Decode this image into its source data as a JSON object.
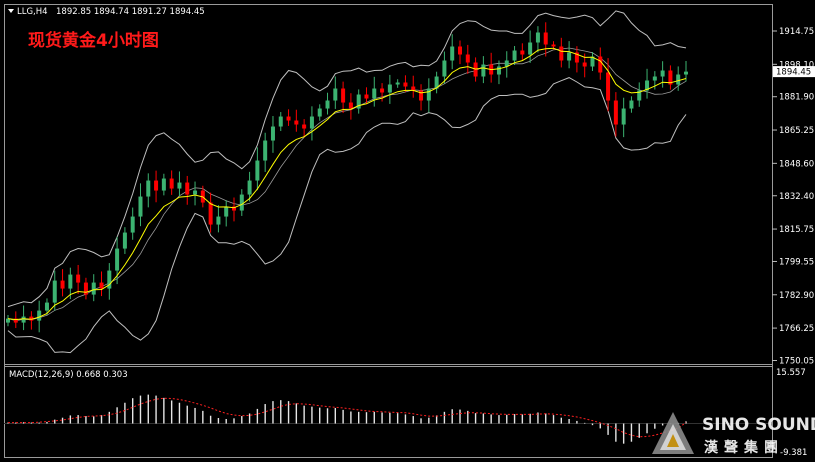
{
  "header": {
    "symbol": "LLG,H4",
    "ohlc": "1892.85 1894.74 1891.27 1894.45",
    "title": "现货黄金4小时图"
  },
  "macd": {
    "label": "MACD(12,26,9) 0.668 0.303",
    "top": "15.557",
    "bottom": "-9.381"
  },
  "watermark": {
    "brand": "SINO SOUND",
    "cn": "漢聲集團"
  },
  "colors": {
    "bg": "#000000",
    "bull": "#3cb371",
    "bear": "#ff0000",
    "ma": "#ffff00",
    "bands": "#bfbfbf",
    "signal": "#ff2020"
  },
  "chart_data": {
    "type": "candlestick",
    "timeframe": "H4",
    "ylim": [
      1750.05,
      1925
    ],
    "price_ticks": [
      "1914.75",
      "1898.10",
      "1881.90",
      "1865.25",
      "1848.60",
      "1832.40",
      "1815.75",
      "1799.55",
      "1782.90",
      "1766.25",
      "1750.05"
    ],
    "price_tick_values": [
      1914.75,
      1898.1,
      1881.9,
      1865.25,
      1848.6,
      1832.4,
      1815.75,
      1799.55,
      1782.9,
      1766.25,
      1750.05
    ],
    "current_price": "1894.45",
    "close": [
      1771,
      1769,
      1772,
      1770,
      1775,
      1779,
      1790,
      1786,
      1793,
      1789,
      1783,
      1789,
      1786,
      1795,
      1806,
      1814,
      1822,
      1832,
      1840,
      1835,
      1841,
      1836,
      1839,
      1833,
      1835,
      1829,
      1818,
      1822,
      1827,
      1825,
      1833,
      1840,
      1850,
      1860,
      1867,
      1872,
      1870,
      1868,
      1866,
      1872,
      1876,
      1880,
      1886,
      1879,
      1876,
      1883,
      1881,
      1886,
      1884,
      1888,
      1889,
      1887,
      1885,
      1880,
      1886,
      1892,
      1900,
      1907,
      1903,
      1899,
      1892,
      1898,
      1893,
      1897,
      1900,
      1905,
      1903,
      1909,
      1914,
      1908,
      1907,
      1900,
      1904,
      1899,
      1897,
      1902,
      1894,
      1880,
      1868,
      1876,
      1880,
      1885,
      1890,
      1892,
      1895,
      1888,
      1893,
      1894.45
    ],
    "macd_hist": [
      0.3,
      0.3,
      0.4,
      0.3,
      0.3,
      0.5,
      1.2,
      1.8,
      2.5,
      2.6,
      2.3,
      2.2,
      2.6,
      3.6,
      5.0,
      6.4,
      7.8,
      8.6,
      8.9,
      8.6,
      7.9,
      7.1,
      6.4,
      5.5,
      4.8,
      3.9,
      2.4,
      1.7,
      1.4,
      1.6,
      2.3,
      3.1,
      4.5,
      6.0,
      6.9,
      7.2,
      6.9,
      6.2,
      5.5,
      5.2,
      4.9,
      4.7,
      4.8,
      4.2,
      3.7,
      3.6,
      3.5,
      3.6,
      3.4,
      3.3,
      3.2,
      2.8,
      2.3,
      1.6,
      1.8,
      2.5,
      3.6,
      4.4,
      4.3,
      3.9,
      3.2,
      3.1,
      2.8,
      2.6,
      2.7,
      2.9,
      2.8,
      3.0,
      3.4,
      3.1,
      2.6,
      1.8,
      1.4,
      0.8,
      0.2,
      -0.5,
      -1.5,
      -3.5,
      -5.6,
      -6.2,
      -5.6,
      -4.4,
      -3.0,
      -1.6,
      -0.6,
      -0.2,
      0.2,
      0.668
    ],
    "macd_signal": [
      0.3,
      0.3,
      0.3,
      0.3,
      0.4,
      0.6,
      0.8,
      1.1,
      1.5,
      1.9,
      2.2,
      2.3,
      2.4,
      2.7,
      3.2,
      4.0,
      5.0,
      6.0,
      6.8,
      7.5,
      7.8,
      7.7,
      7.4,
      6.9,
      6.3,
      5.6,
      4.8,
      3.9,
      3.1,
      2.6,
      2.4,
      2.5,
      2.9,
      3.6,
      4.4,
      5.3,
      5.9,
      6.1,
      6.0,
      5.8,
      5.5,
      5.2,
      5.0,
      4.8,
      4.5,
      4.2,
      3.9,
      3.7,
      3.6,
      3.5,
      3.4,
      3.3,
      3.0,
      2.6,
      2.3,
      2.3,
      2.5,
      2.8,
      3.1,
      3.3,
      3.3,
      3.2,
      3.0,
      2.9,
      2.8,
      2.8,
      2.8,
      2.8,
      2.9,
      3.0,
      2.9,
      2.7,
      2.4,
      2.0,
      1.5,
      0.9,
      0.2,
      -0.6,
      -1.6,
      -2.8,
      -3.6,
      -4.1,
      -4.0,
      -3.6,
      -2.9,
      -2.2,
      -1.4,
      0.303
    ]
  }
}
